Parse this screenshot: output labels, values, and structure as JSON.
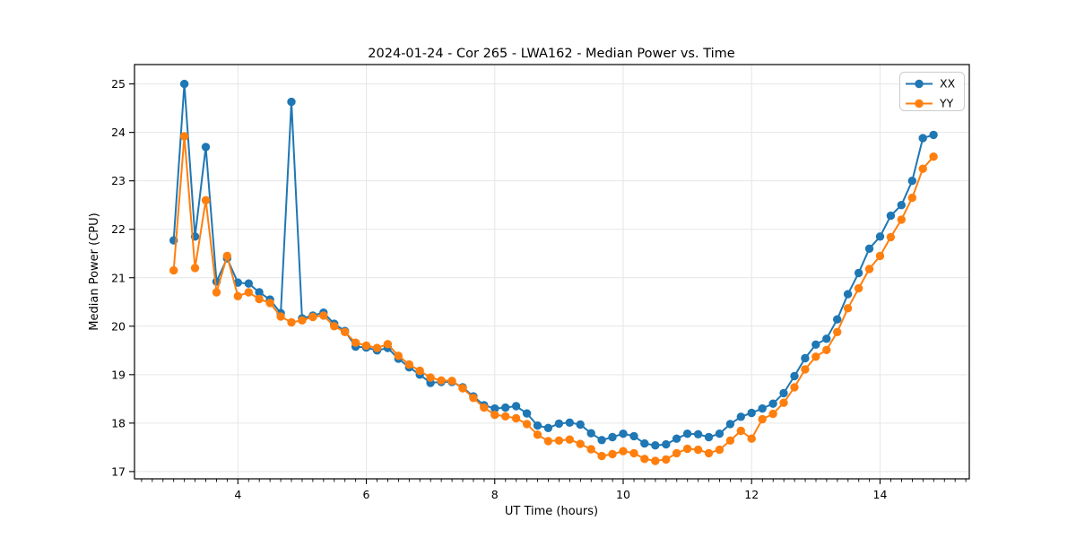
{
  "chart_data": {
    "type": "line",
    "title": "2024-01-24 - Cor 265 - LWA162 - Median Power vs. Time",
    "xlabel": "UT Time (hours)",
    "ylabel": "Median Power (CPU)",
    "xlim": [
      2.39,
      15.39
    ],
    "ylim": [
      16.85,
      25.4
    ],
    "x_ticks": [
      4,
      6,
      8,
      10,
      12,
      14
    ],
    "y_ticks": [
      17,
      18,
      19,
      20,
      21,
      22,
      23,
      24,
      25
    ],
    "x_minor_step": 0.1667,
    "grid": true,
    "legend": {
      "position": "upper right",
      "labels": [
        "XX",
        "YY"
      ]
    },
    "x": [
      3.0,
      3.167,
      3.333,
      3.5,
      3.667,
      3.833,
      4.0,
      4.167,
      4.333,
      4.5,
      4.667,
      4.833,
      5.0,
      5.167,
      5.333,
      5.5,
      5.667,
      5.833,
      6.0,
      6.167,
      6.333,
      6.5,
      6.667,
      6.833,
      7.0,
      7.167,
      7.333,
      7.5,
      7.667,
      7.833,
      8.0,
      8.167,
      8.333,
      8.5,
      8.667,
      8.833,
      9.0,
      9.167,
      9.333,
      9.5,
      9.667,
      9.833,
      10.0,
      10.167,
      10.333,
      10.5,
      10.667,
      10.833,
      11.0,
      11.167,
      11.333,
      11.5,
      11.667,
      11.833,
      12.0,
      12.167,
      12.333,
      12.5,
      12.667,
      12.833,
      13.0,
      13.167,
      13.333,
      13.5,
      13.667,
      13.833,
      14.0,
      14.167,
      14.333,
      14.5,
      14.667,
      14.833
    ],
    "series": [
      {
        "name": "XX",
        "color": "#1f77b4",
        "values": [
          21.77,
          25.0,
          21.85,
          23.7,
          20.92,
          21.4,
          20.9,
          20.88,
          20.7,
          20.55,
          20.27,
          24.63,
          20.16,
          20.22,
          20.28,
          20.05,
          19.9,
          19.58,
          19.56,
          19.5,
          19.55,
          19.33,
          19.15,
          19.0,
          18.83,
          18.85,
          18.85,
          18.74,
          18.55,
          18.37,
          18.3,
          18.32,
          18.35,
          18.2,
          17.95,
          17.9,
          17.99,
          18.01,
          17.97,
          17.79,
          17.65,
          17.71,
          17.78,
          17.73,
          17.58,
          17.54,
          17.56,
          17.68,
          17.78,
          17.77,
          17.71,
          17.78,
          17.98,
          18.13,
          18.21,
          18.3,
          18.4,
          18.62,
          18.97,
          19.34,
          19.62,
          19.74,
          20.14,
          20.66,
          21.1,
          21.6,
          21.85,
          22.28,
          22.5,
          23.0,
          23.88,
          23.95
        ]
      },
      {
        "name": "YY",
        "color": "#ff7f0e",
        "values": [
          21.15,
          23.92,
          21.2,
          22.6,
          20.7,
          21.45,
          20.62,
          20.7,
          20.56,
          20.48,
          20.2,
          20.08,
          20.12,
          20.19,
          20.22,
          20.0,
          19.88,
          19.66,
          19.6,
          19.55,
          19.63,
          19.39,
          19.21,
          19.08,
          18.94,
          18.88,
          18.87,
          18.72,
          18.52,
          18.32,
          18.17,
          18.14,
          18.1,
          17.98,
          17.76,
          17.63,
          17.64,
          17.66,
          17.57,
          17.46,
          17.32,
          17.36,
          17.42,
          17.38,
          17.26,
          17.22,
          17.25,
          17.38,
          17.47,
          17.45,
          17.38,
          17.45,
          17.64,
          17.84,
          17.68,
          18.08,
          18.19,
          18.42,
          18.74,
          19.11,
          19.37,
          19.51,
          19.88,
          20.37,
          20.78,
          21.18,
          21.45,
          21.84,
          22.2,
          22.65,
          23.25,
          23.5
        ]
      }
    ],
    "colors": {
      "grid": "#e6e6e6",
      "spine": "#000000",
      "background": "#ffffff"
    }
  }
}
